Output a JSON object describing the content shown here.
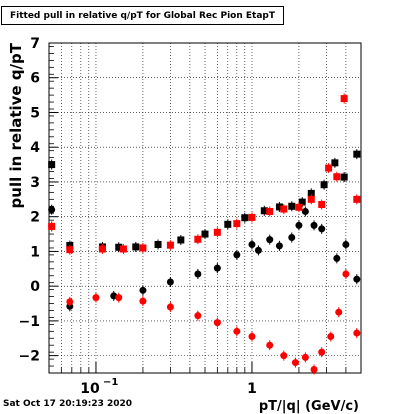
{
  "title": "Fitted pull in relative q/pT  for Global Rec Pion EtapT",
  "timestamp": "Sat Oct 17 20:19:23 2020",
  "chart_data": {
    "type": "scatter",
    "xlabel": "pT/|q| (GeV/c)",
    "ylabel": "pull in relative q/pT",
    "x_scale": "log",
    "xlim": [
      0.05,
      5.0
    ],
    "ylim": [
      -2.5,
      7
    ],
    "y_ticks": [
      -2,
      -1,
      0,
      1,
      2,
      3,
      4,
      5,
      6,
      7
    ],
    "x_tick_labels": [
      {
        "value": 0.1,
        "base": "10",
        "exp": "−1"
      },
      {
        "value": 1,
        "text": "1"
      }
    ],
    "grid": true,
    "series": [
      {
        "color": "#000000",
        "marker": "square",
        "points": [
          {
            "x": 0.052,
            "y": 3.5
          },
          {
            "x": 0.068,
            "y": 1.17
          },
          {
            "x": 0.11,
            "y": 1.13
          },
          {
            "x": 0.14,
            "y": 1.12
          },
          {
            "x": 0.18,
            "y": 1.13
          },
          {
            "x": 0.25,
            "y": 1.2
          },
          {
            "x": 0.35,
            "y": 1.33
          },
          {
            "x": 0.5,
            "y": 1.5
          },
          {
            "x": 0.7,
            "y": 1.78
          },
          {
            "x": 0.9,
            "y": 1.97
          },
          {
            "x": 1.2,
            "y": 2.17
          },
          {
            "x": 1.5,
            "y": 2.28
          },
          {
            "x": 1.8,
            "y": 2.3
          },
          {
            "x": 2.1,
            "y": 2.42
          },
          {
            "x": 2.4,
            "y": 2.67
          },
          {
            "x": 2.9,
            "y": 2.92
          },
          {
            "x": 3.4,
            "y": 3.55
          },
          {
            "x": 3.9,
            "y": 3.14
          },
          {
            "x": 4.7,
            "y": 3.8
          }
        ]
      },
      {
        "color": "#000000",
        "marker": "circle",
        "points": [
          {
            "x": 0.052,
            "y": 2.2
          },
          {
            "x": 0.068,
            "y": -0.58
          },
          {
            "x": 0.13,
            "y": -0.28
          },
          {
            "x": 0.2,
            "y": -0.12
          },
          {
            "x": 0.3,
            "y": 0.12
          },
          {
            "x": 0.45,
            "y": 0.35
          },
          {
            "x": 0.6,
            "y": 0.52
          },
          {
            "x": 0.8,
            "y": 0.9
          },
          {
            "x": 1.0,
            "y": 1.2
          },
          {
            "x": 1.1,
            "y": 1.03
          },
          {
            "x": 1.3,
            "y": 1.34
          },
          {
            "x": 1.5,
            "y": 1.16
          },
          {
            "x": 1.8,
            "y": 1.4
          },
          {
            "x": 2.0,
            "y": 1.75
          },
          {
            "x": 2.2,
            "y": 2.15
          },
          {
            "x": 2.5,
            "y": 1.75
          },
          {
            "x": 2.8,
            "y": 1.65
          },
          {
            "x": 3.5,
            "y": 0.8
          },
          {
            "x": 4.0,
            "y": 1.2
          },
          {
            "x": 4.7,
            "y": 0.2
          }
        ]
      },
      {
        "color": "#ff0000",
        "marker": "square",
        "points": [
          {
            "x": 0.052,
            "y": 1.72
          },
          {
            "x": 0.068,
            "y": 1.05
          },
          {
            "x": 0.11,
            "y": 1.07
          },
          {
            "x": 0.15,
            "y": 1.07
          },
          {
            "x": 0.2,
            "y": 1.1
          },
          {
            "x": 0.3,
            "y": 1.18
          },
          {
            "x": 0.45,
            "y": 1.35
          },
          {
            "x": 0.6,
            "y": 1.55
          },
          {
            "x": 0.8,
            "y": 1.8
          },
          {
            "x": 1.0,
            "y": 1.98
          },
          {
            "x": 1.3,
            "y": 2.15
          },
          {
            "x": 1.6,
            "y": 2.22
          },
          {
            "x": 2.0,
            "y": 2.27
          },
          {
            "x": 2.4,
            "y": 2.5
          },
          {
            "x": 2.8,
            "y": 2.35
          },
          {
            "x": 3.1,
            "y": 3.4
          },
          {
            "x": 3.5,
            "y": 3.15
          },
          {
            "x": 3.9,
            "y": 5.4
          },
          {
            "x": 4.7,
            "y": 2.5
          }
        ]
      },
      {
        "color": "#ff0000",
        "marker": "circle",
        "points": [
          {
            "x": 0.052,
            "y": 1.72
          },
          {
            "x": 0.068,
            "y": -0.45
          },
          {
            "x": 0.1,
            "y": -0.33
          },
          {
            "x": 0.14,
            "y": -0.33
          },
          {
            "x": 0.2,
            "y": -0.43
          },
          {
            "x": 0.3,
            "y": -0.6
          },
          {
            "x": 0.45,
            "y": -0.85
          },
          {
            "x": 0.6,
            "y": -1.05
          },
          {
            "x": 0.8,
            "y": -1.3
          },
          {
            "x": 1.0,
            "y": -1.45
          },
          {
            "x": 1.3,
            "y": -1.7
          },
          {
            "x": 1.6,
            "y": -2.0
          },
          {
            "x": 1.9,
            "y": -2.2
          },
          {
            "x": 2.2,
            "y": -2.05
          },
          {
            "x": 2.5,
            "y": -2.4
          },
          {
            "x": 2.8,
            "y": -1.9
          },
          {
            "x": 3.2,
            "y": -1.45
          },
          {
            "x": 3.6,
            "y": -0.75
          },
          {
            "x": 4.0,
            "y": 0.35
          },
          {
            "x": 4.7,
            "y": -1.35
          }
        ]
      }
    ]
  }
}
